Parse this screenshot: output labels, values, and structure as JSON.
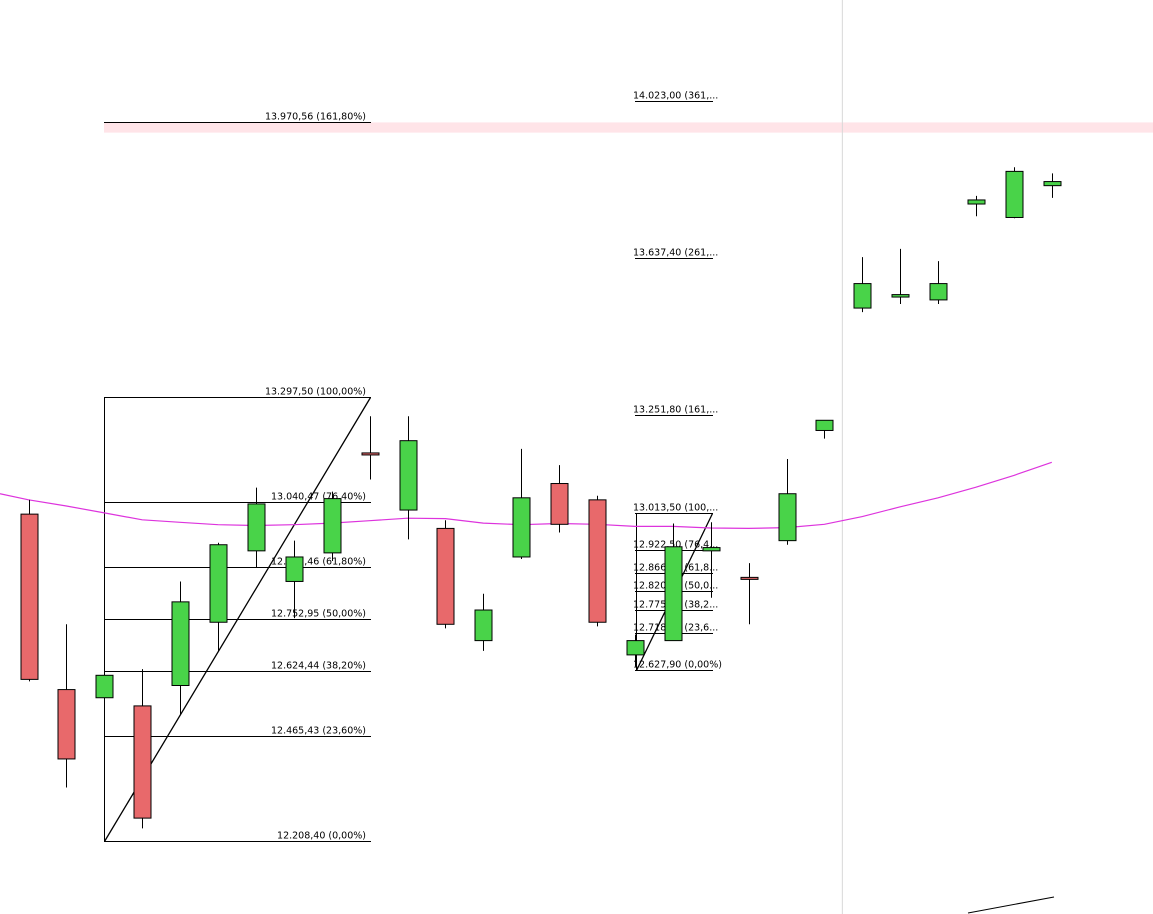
{
  "chart_data": {
    "type": "candlestick",
    "title": "",
    "xlabel": "",
    "ylabel": "",
    "grid": false,
    "ylim": [
      12030,
      14270
    ],
    "colors": {
      "up": "#49d349",
      "down": "#e8696b",
      "moving_average": "#dd33dd",
      "highlight_band": "#ffe4e8",
      "line": "#000000",
      "separator": "#d8d8d8"
    },
    "candles": [
      {
        "open": 13010,
        "high": 13045,
        "low": 12600,
        "close": 12605
      },
      {
        "open": 12580,
        "high": 12740,
        "low": 12340,
        "close": 12410
      },
      {
        "open": 12560,
        "high": 12610,
        "low": 12250,
        "close": 12615
      },
      {
        "open": 12540,
        "high": 12630,
        "low": 12240,
        "close": 12265
      },
      {
        "open": 12590,
        "high": 12845,
        "low": 12520,
        "close": 12795
      },
      {
        "open": 12745,
        "high": 12940,
        "low": 12675,
        "close": 12935
      },
      {
        "open": 12920,
        "high": 13075,
        "low": 12880,
        "close": 13035
      },
      {
        "open": 12845,
        "high": 12945,
        "low": 12755,
        "close": 12905
      },
      {
        "open": 12915,
        "high": 13065,
        "low": 12895,
        "close": 13048
      },
      {
        "open": 13160,
        "high": 13250,
        "low": 13095,
        "close": 13155
      },
      {
        "open": 13020,
        "high": 13250,
        "low": 12948,
        "close": 13190
      },
      {
        "open": 12975,
        "high": 12995,
        "low": 12730,
        "close": 12740
      },
      {
        "open": 12700,
        "high": 12815,
        "low": 12675,
        "close": 12775
      },
      {
        "open": 12905,
        "high": 13170,
        "low": 12900,
        "close": 13050
      },
      {
        "open": 13085,
        "high": 13130,
        "low": 12965,
        "close": 12985
      },
      {
        "open": 13045,
        "high": 13055,
        "low": 12735,
        "close": 12745
      },
      {
        "open": 12665,
        "high": 12715,
        "low": 12636,
        "close": 12700
      },
      {
        "open": 12700,
        "high": 12987,
        "low": 12700,
        "close": 12930
      },
      {
        "open": 12920,
        "high": 12990,
        "low": 12805,
        "close": 12928
      },
      {
        "open": 12855,
        "high": 12890,
        "low": 12740,
        "close": 12852
      },
      {
        "open": 12945,
        "high": 13145,
        "low": 12935,
        "close": 13060
      },
      {
        "open": 13215,
        "high": 13225,
        "low": 13195,
        "close": 13240
      },
      {
        "open": 13515,
        "high": 13640,
        "low": 13505,
        "close": 13575
      },
      {
        "open": 13542,
        "high": 13660,
        "low": 13525,
        "close": 13548
      },
      {
        "open": 13535,
        "high": 13630,
        "low": 13525,
        "close": 13575
      },
      {
        "open": 13770,
        "high": 13790,
        "low": 13740,
        "close": 13780
      },
      {
        "open": 13737,
        "high": 13860,
        "low": 13735,
        "close": 13850
      },
      {
        "open": 13815,
        "high": 13845,
        "low": 13785,
        "close": 13825
      }
    ],
    "moving_average": [
      13045,
      13030,
      13013,
      12996,
      12990,
      12984,
      12982,
      12984,
      12988,
      12994,
      13000,
      12999,
      12988,
      12984,
      12987,
      12985,
      12980,
      12980,
      12976,
      12975,
      12977,
      12985,
      13004,
      13028,
      13050,
      13076,
      13105,
      13137
    ],
    "highlight_band": {
      "from": 13945,
      "to": 13970
    },
    "fibonacci_sets": [
      {
        "start_candle": 2,
        "end_candle": 9,
        "low": 12208.4,
        "high": 13297.5,
        "levels": [
          {
            "value": 13970.56,
            "label": "13.970,56 (161,80%)"
          },
          {
            "value": 13297.5,
            "label": "13.297,50 (100,00%)"
          },
          {
            "value": 13040.47,
            "label": "13.040,47 (76,40%)"
          },
          {
            "value": 12881.46,
            "label": "12.881,46 (61,80%)"
          },
          {
            "value": 12752.95,
            "label": "12.752,95 (50,00%)"
          },
          {
            "value": 12624.44,
            "label": "12.624,44 (38,20%)"
          },
          {
            "value": 12465.43,
            "label": "12.465,43 (23,60%)"
          },
          {
            "value": 12208.4,
            "label": "12.208,40 (0,00%)"
          }
        ]
      },
      {
        "start_candle": 16,
        "end_candle": 18,
        "low": 12627.9,
        "high": 13013.5,
        "levels": [
          {
            "value": 14023.0,
            "label": "14.023,00 (361,..."
          },
          {
            "value": 13637.4,
            "label": "13.637,40 (261,..."
          },
          {
            "value": 13251.8,
            "label": "13.251,80 (161,..."
          },
          {
            "value": 13013.5,
            "label": "13.013,50 (100,..."
          },
          {
            "value": 12922.5,
            "label": "12.922,50 (76,4..."
          },
          {
            "value": 12866.2,
            "label": "12.866,20 (61,8..."
          },
          {
            "value": 12820.7,
            "label": "12.820,70 (50,0..."
          },
          {
            "value": 12775.3,
            "label": "12.775,30 (38,2..."
          },
          {
            "value": 12718.9,
            "label": "12.718,90 (23,6..."
          },
          {
            "value": 12627.9,
            "label": "12.627,90 (0,00%)"
          }
        ]
      }
    ],
    "separator_after_candle": 21
  }
}
